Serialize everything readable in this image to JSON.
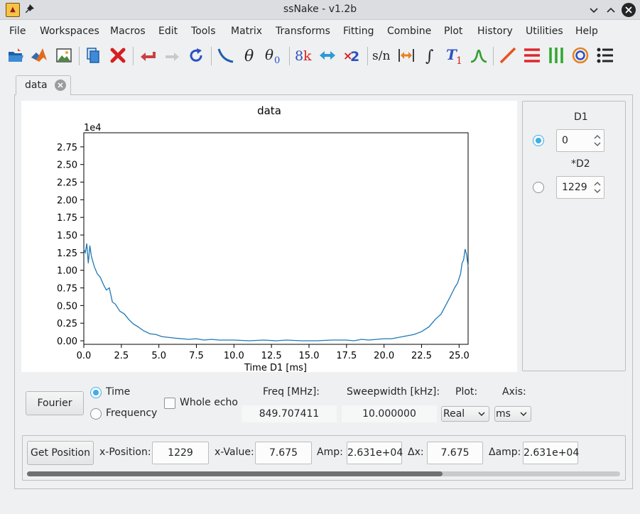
{
  "window": {
    "title": "ssNake - v1.2b"
  },
  "menu": [
    "File",
    "Workspaces",
    "Macros",
    "Edit",
    "Tools",
    "Matrix",
    "Transforms",
    "Fitting",
    "Combine",
    "Plot",
    "History",
    "Utilities",
    "Help"
  ],
  "toolbar": {
    "icons": [
      "open-folder-icon",
      "matlab-icon",
      "image-icon",
      "copy-icon",
      "delete-icon",
      "undo-icon",
      "redo-icon",
      "reload-icon",
      "phasing-icon",
      "theta-icon",
      "theta-zero-icon",
      "size-8k-icon",
      "swap-icon",
      "times-two-icon",
      "signal-noise-icon",
      "width-icon",
      "integral-icon",
      "t1-icon",
      "peak-icon",
      "one-d-plot-icon",
      "stack-plot-icon",
      "array-plot-icon",
      "contour-plot-icon",
      "multi-plot-icon"
    ],
    "text_icons": {
      "theta": "θ",
      "theta0_base": "θ",
      "theta0_sub": "0",
      "size_num": "8",
      "size_k": "k",
      "times": "×",
      "two": "2",
      "sn": "s/n",
      "integral": "∫",
      "t1_T": "T",
      "t1_sub": "1"
    }
  },
  "tab": {
    "label": "data"
  },
  "chart_data": {
    "type": "line",
    "title": "data",
    "xlabel": "Time D1 [ms]",
    "ylabel": "",
    "offset_label": "1e4",
    "xlim": [
      0,
      25.6
    ],
    "ylim": [
      -0.05,
      2.95
    ],
    "xticks": [
      "0.0",
      "2.5",
      "5.0",
      "7.5",
      "10.0",
      "12.5",
      "15.0",
      "17.5",
      "20.0",
      "22.5",
      "25.0"
    ],
    "yticks": [
      "0.00",
      "0.25",
      "0.50",
      "0.75",
      "1.00",
      "1.25",
      "1.50",
      "1.75",
      "2.00",
      "2.25",
      "2.50",
      "2.75"
    ],
    "color": "#1f77b4",
    "series": [
      {
        "x": [
          0,
          0.1,
          0.2,
          0.3,
          0.4,
          0.5,
          0.7,
          0.9,
          1.1,
          1.3,
          1.5,
          1.7,
          1.9,
          2.1,
          2.4,
          2.7,
          3.0,
          3.3,
          3.6,
          4.0,
          4.4,
          4.8,
          5.2,
          5.6,
          6.0,
          6.5,
          7.0,
          7.5,
          8.0,
          8.5,
          9.0,
          10.0,
          11.0,
          12.0,
          12.8,
          13.5,
          14.5,
          15.5,
          16.5,
          17.5,
          18.0,
          18.5,
          19.0,
          19.5,
          20.0,
          20.5,
          21.0,
          21.5,
          22.0,
          22.5,
          23.0,
          23.4,
          23.8,
          24.1,
          24.4,
          24.7,
          24.9,
          25.1,
          25.2,
          25.3,
          25.4,
          25.5,
          25.6
        ],
        "y": [
          1.3,
          1.25,
          1.38,
          1.1,
          1.35,
          1.2,
          1.05,
          0.95,
          0.9,
          0.8,
          0.72,
          0.75,
          0.55,
          0.52,
          0.42,
          0.38,
          0.3,
          0.24,
          0.2,
          0.14,
          0.1,
          0.09,
          0.06,
          0.05,
          0.04,
          0.03,
          0.02,
          0.03,
          0.01,
          0.02,
          0.01,
          0.01,
          0.0,
          0.01,
          0.0,
          0.01,
          0.0,
          0.0,
          0.01,
          0.01,
          0.0,
          0.02,
          0.01,
          0.02,
          0.03,
          0.03,
          0.05,
          0.07,
          0.09,
          0.13,
          0.2,
          0.3,
          0.38,
          0.5,
          0.62,
          0.75,
          0.82,
          0.95,
          1.1,
          1.15,
          1.3,
          1.22,
          1.05
        ]
      }
    ]
  },
  "side": {
    "d1_label": "D1",
    "d1_value": "0",
    "d2_label": "*D2",
    "d2_value": "1229"
  },
  "controls": {
    "fourier": "Fourier",
    "time": "Time",
    "frequency": "Frequency",
    "whole_echo": "Whole echo",
    "freq_label": "Freq [MHz]:",
    "freq_value": "849.707411",
    "sw_label": "Sweepwidth [kHz]:",
    "sw_value": "10.000000",
    "plot_label": "Plot:",
    "plot_value": "Real",
    "axis_label": "Axis:",
    "axis_value": "ms"
  },
  "position": {
    "get_position": "Get Position",
    "x_position_label": "x-Position:",
    "x_position_value": "1229",
    "x_value_label": "x-Value:",
    "x_value": "7.675",
    "amp_label": "Amp:",
    "amp_value": "2.631e+04",
    "dx_label": "Δx:",
    "dx_value": "7.675",
    "damp_label": "Δamp:",
    "damp_value": "2.631e+04"
  },
  "scroll": {
    "position": 0.7
  }
}
